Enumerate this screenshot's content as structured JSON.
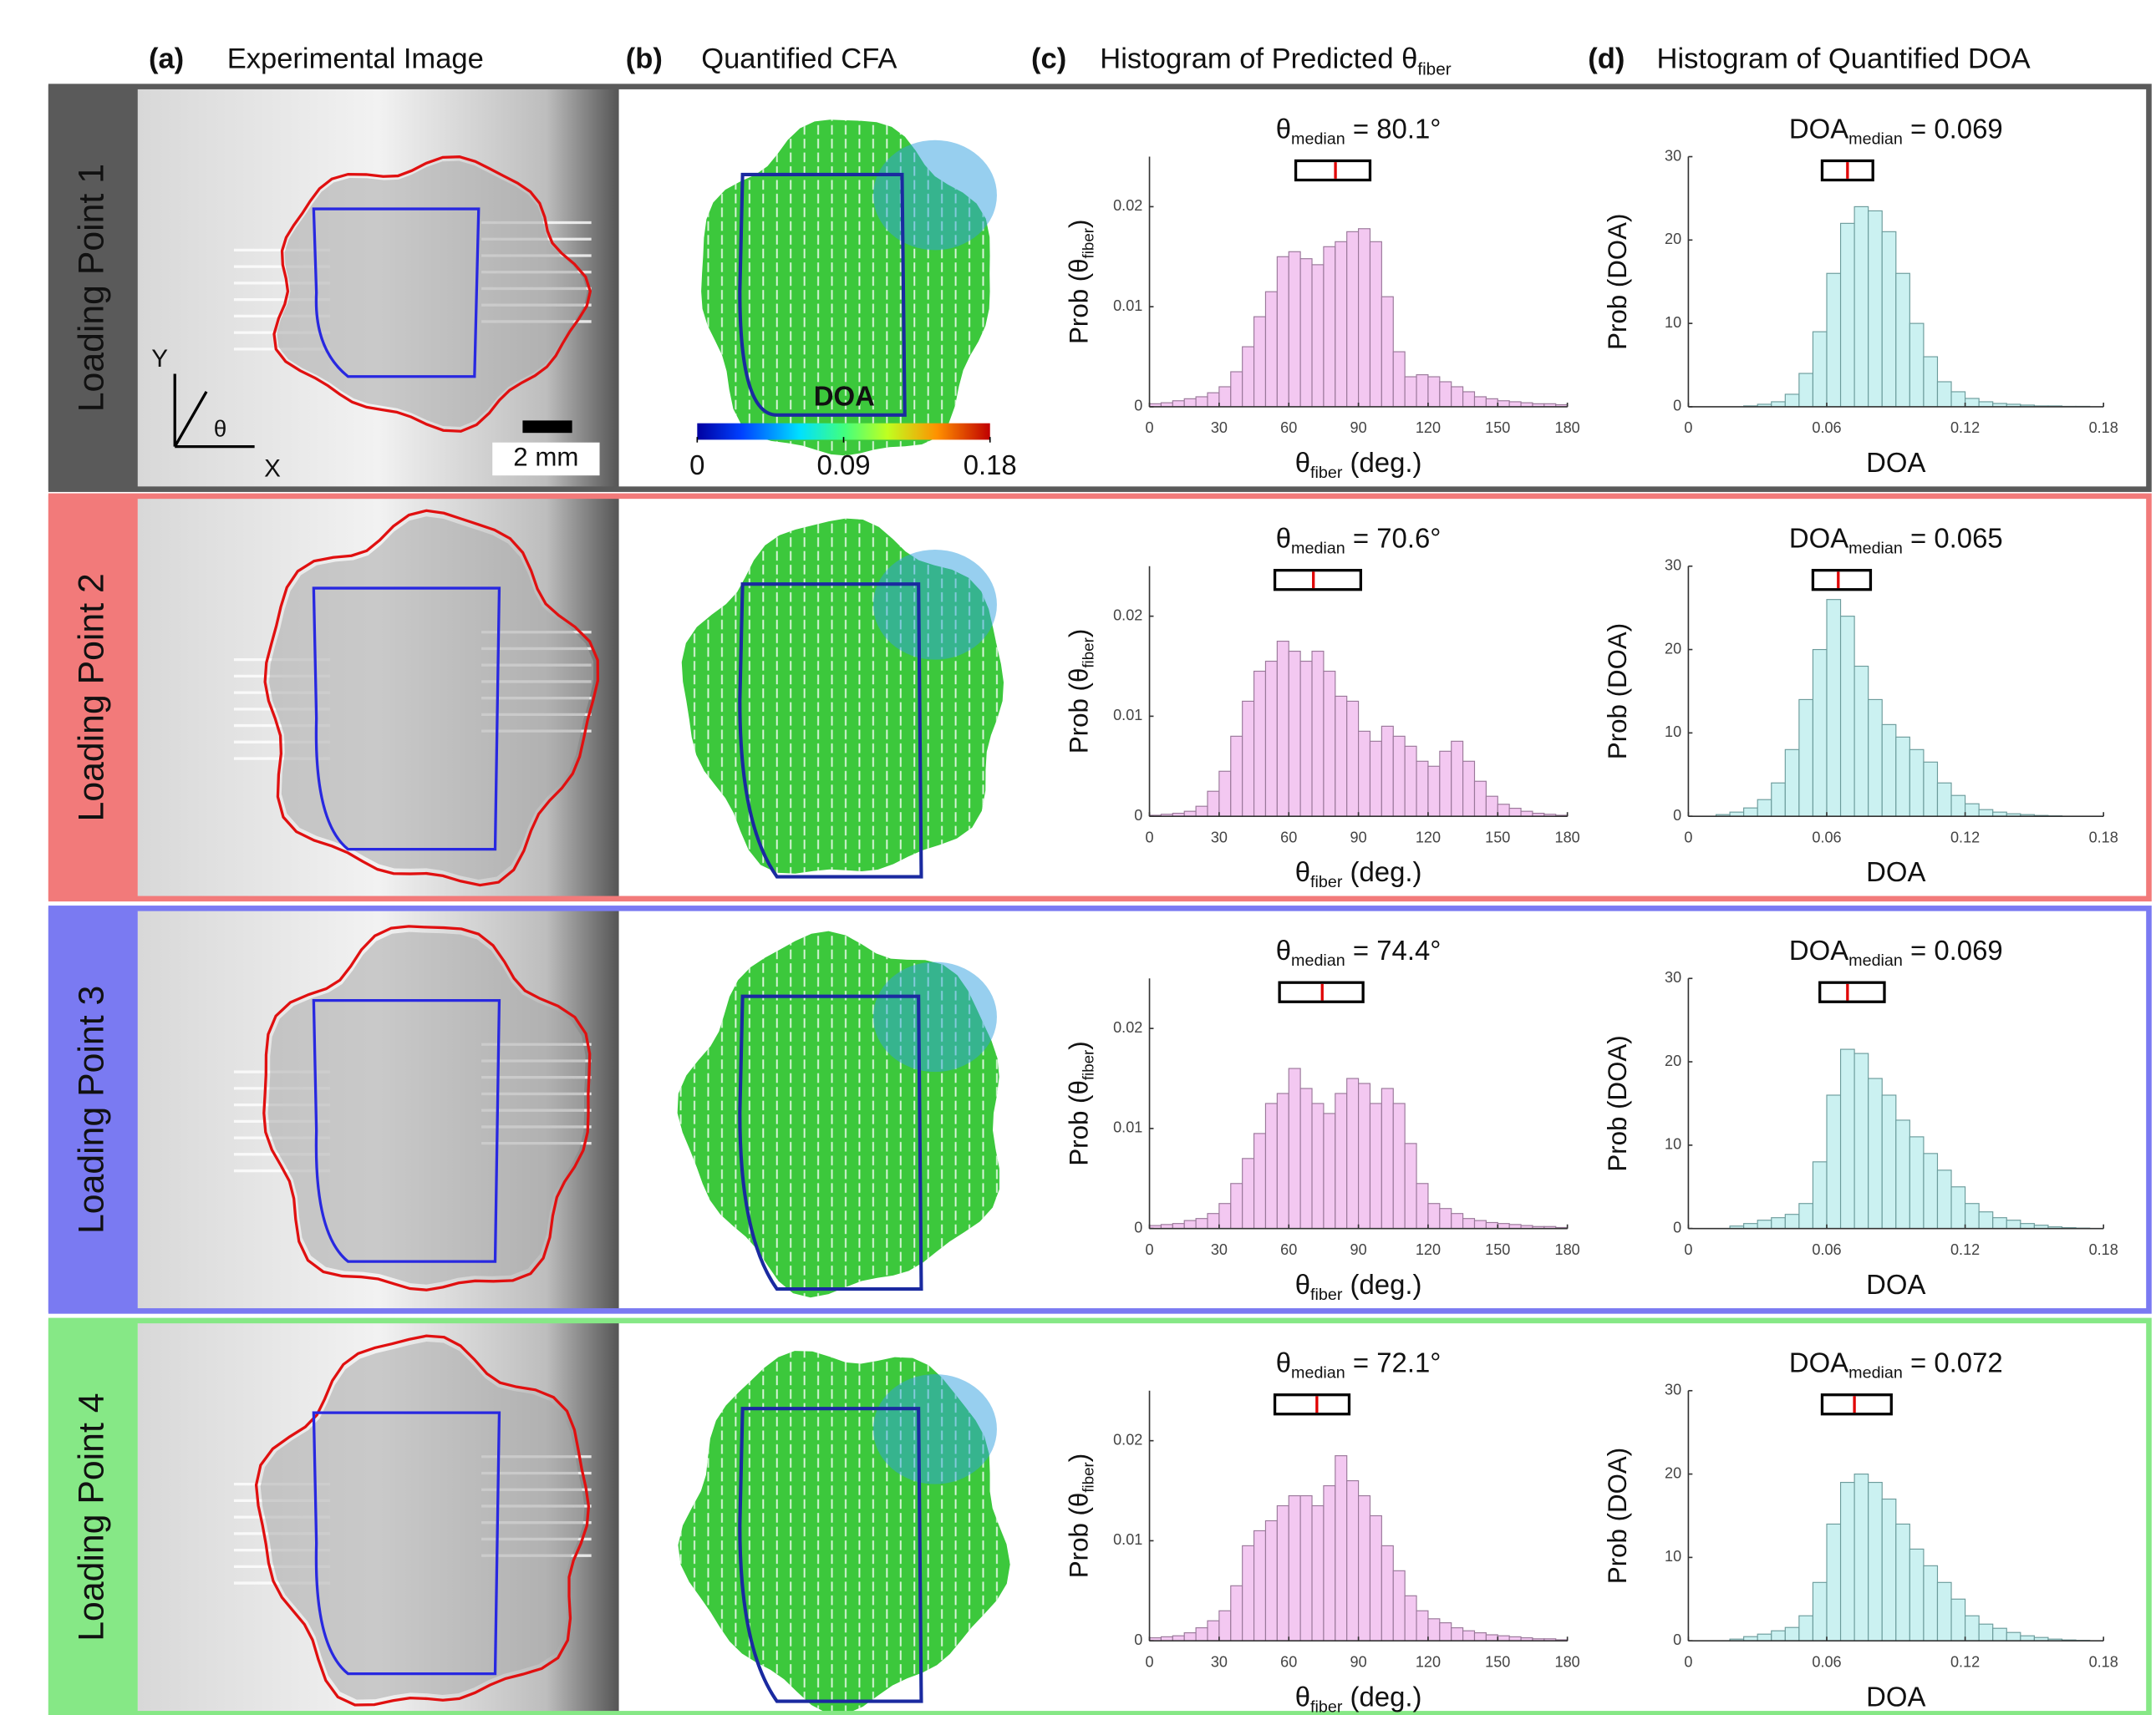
{
  "headers": [
    {
      "letter": "(a)",
      "text": "Experimental Image"
    },
    {
      "letter": "(b)",
      "text": "Quantified CFA"
    },
    {
      "letter": "(c)",
      "text": "Histogram of Predicted θ",
      "sub": "fiber"
    },
    {
      "letter": "(d)",
      "text": "Histogram of Quantified DOA"
    }
  ],
  "rows": [
    {
      "label": "Loading Point 1",
      "color": "#5a5a5a"
    },
    {
      "label": "Loading Point 2",
      "color": "#f27a7a"
    },
    {
      "label": "Loading Point 3",
      "color": "#7a7af2"
    },
    {
      "label": "Loading Point 4",
      "color": "#86e886"
    }
  ],
  "scale_bar": "2 mm",
  "axes_icon": {
    "x": "X",
    "y": "Y",
    "angle": "θ"
  },
  "colorbar": {
    "label": "DOA",
    "lim": [
      0,
      0.18
    ],
    "ticks": [
      0,
      0.09,
      0.18
    ]
  },
  "chart_data": [
    {
      "type": "histogram",
      "title": {
        "main": "θ",
        "sub": "median",
        "rest": " = 80.1°"
      },
      "xlabel": {
        "main": "θ",
        "sub": "fiber",
        "rest": " (deg.)"
      },
      "ylabel": {
        "main": "Prob (θ",
        "sub": "fiber",
        "rest": ")"
      },
      "color": "#f3c8f1",
      "edgecolor": "#9a789a",
      "bins": [
        0,
        5,
        10,
        15,
        20,
        25,
        30,
        35,
        40,
        45,
        50,
        55,
        60,
        65,
        70,
        75,
        80,
        85,
        90,
        95,
        100,
        105,
        110,
        115,
        120,
        125,
        130,
        135,
        140,
        145,
        150,
        155,
        160,
        165,
        170,
        175,
        180
      ],
      "values": [
        0.0003,
        0.0004,
        0.0006,
        0.0008,
        0.001,
        0.0014,
        0.002,
        0.0035,
        0.006,
        0.009,
        0.0115,
        0.015,
        0.0155,
        0.0148,
        0.0142,
        0.016,
        0.0165,
        0.0175,
        0.0178,
        0.0165,
        0.011,
        0.0055,
        0.003,
        0.0032,
        0.003,
        0.0025,
        0.002,
        0.0015,
        0.001,
        0.0008,
        0.0006,
        0.0005,
        0.0004,
        0.0003,
        0.0003,
        0.0002
      ],
      "xlim": [
        0,
        180
      ],
      "xticks": [
        0,
        30,
        60,
        90,
        120,
        150,
        180
      ],
      "ylim": [
        0,
        0.025
      ],
      "yticks": [
        0,
        0.01,
        0.02
      ],
      "box": {
        "q1": 63,
        "median": 80.1,
        "q3": 95
      }
    },
    {
      "type": "histogram",
      "title": {
        "main": "DOA",
        "sub": "median",
        "rest": " = 0.069"
      },
      "xlabel": {
        "main": "DOA"
      },
      "ylabel": {
        "main": "Prob (DOA)"
      },
      "color": "#cbf1f1",
      "edgecolor": "#6c9c9c",
      "bins": [
        0,
        0.006,
        0.012,
        0.018,
        0.024,
        0.03,
        0.036,
        0.042,
        0.048,
        0.054,
        0.06,
        0.066,
        0.072,
        0.078,
        0.084,
        0.09,
        0.096,
        0.102,
        0.108,
        0.114,
        0.12,
        0.126,
        0.132,
        0.138,
        0.144,
        0.15,
        0.156,
        0.162,
        0.168,
        0.174,
        0.18
      ],
      "values": [
        0,
        0,
        0,
        0,
        0.1,
        0.3,
        0.6,
        1.5,
        4,
        9,
        16,
        22,
        24,
        23.5,
        21,
        16,
        10,
        6,
        3,
        1.8,
        1,
        0.6,
        0.4,
        0.3,
        0.2,
        0.1,
        0.1,
        0.05,
        0.05,
        0
      ],
      "xlim": [
        0,
        0.18
      ],
      "xticks": [
        0,
        0.06,
        0.12,
        0.18
      ],
      "ylim": [
        0,
        30
      ],
      "yticks": [
        0,
        10,
        20,
        30
      ],
      "box": {
        "q1": 0.058,
        "median": 0.069,
        "q3": 0.08
      }
    },
    {
      "type": "histogram",
      "title": {
        "main": "θ",
        "sub": "median",
        "rest": " = 70.6°"
      },
      "xlabel": {
        "main": "θ",
        "sub": "fiber",
        "rest": " (deg.)"
      },
      "ylabel": {
        "main": "Prob (θ",
        "sub": "fiber",
        "rest": ")"
      },
      "color": "#f3c8f1",
      "edgecolor": "#9a789a",
      "bins": [
        0,
        5,
        10,
        15,
        20,
        25,
        30,
        35,
        40,
        45,
        50,
        55,
        60,
        65,
        70,
        75,
        80,
        85,
        90,
        95,
        100,
        105,
        110,
        115,
        120,
        125,
        130,
        135,
        140,
        145,
        150,
        155,
        160,
        165,
        170,
        175,
        180
      ],
      "values": [
        0.0001,
        0.0002,
        0.0003,
        0.0005,
        0.001,
        0.0025,
        0.0045,
        0.008,
        0.0115,
        0.0145,
        0.0155,
        0.0175,
        0.0165,
        0.0155,
        0.0165,
        0.0145,
        0.012,
        0.0115,
        0.0085,
        0.0075,
        0.009,
        0.008,
        0.007,
        0.0055,
        0.005,
        0.0065,
        0.0075,
        0.0055,
        0.0035,
        0.002,
        0.0012,
        0.0008,
        0.0005,
        0.0003,
        0.0002,
        0.0001
      ],
      "xlim": [
        0,
        180
      ],
      "xticks": [
        0,
        30,
        60,
        90,
        120,
        150,
        180
      ],
      "ylim": [
        0,
        0.025
      ],
      "yticks": [
        0,
        0.01,
        0.02
      ],
      "box": {
        "q1": 54,
        "median": 70.6,
        "q3": 91
      }
    },
    {
      "type": "histogram",
      "title": {
        "main": "DOA",
        "sub": "median",
        "rest": " = 0.065"
      },
      "xlabel": {
        "main": "DOA"
      },
      "ylabel": {
        "main": "Prob (DOA)"
      },
      "color": "#cbf1f1",
      "edgecolor": "#6c9c9c",
      "bins": [
        0,
        0.006,
        0.012,
        0.018,
        0.024,
        0.03,
        0.036,
        0.042,
        0.048,
        0.054,
        0.06,
        0.066,
        0.072,
        0.078,
        0.084,
        0.09,
        0.096,
        0.102,
        0.108,
        0.114,
        0.12,
        0.126,
        0.132,
        0.138,
        0.144,
        0.15,
        0.156,
        0.162,
        0.168,
        0.174,
        0.18
      ],
      "values": [
        0,
        0,
        0.2,
        0.5,
        1,
        2,
        4,
        8,
        14,
        20,
        26,
        24,
        18,
        14,
        11,
        9.5,
        8,
        6.5,
        4,
        2.5,
        1.5,
        0.8,
        0.5,
        0.3,
        0.2,
        0.1,
        0.05,
        0,
        0,
        0
      ],
      "xlim": [
        0,
        0.18
      ],
      "xticks": [
        0,
        0.06,
        0.12,
        0.18
      ],
      "ylim": [
        0,
        30
      ],
      "yticks": [
        0,
        10,
        20,
        30
      ],
      "box": {
        "q1": 0.054,
        "median": 0.065,
        "q3": 0.079
      }
    },
    {
      "type": "histogram",
      "title": {
        "main": "θ",
        "sub": "median",
        "rest": " = 74.4°"
      },
      "xlabel": {
        "main": "θ",
        "sub": "fiber",
        "rest": " (deg.)"
      },
      "ylabel": {
        "main": "Prob (θ",
        "sub": "fiber",
        "rest": ")"
      },
      "color": "#f3c8f1",
      "edgecolor": "#9a789a",
      "bins": [
        0,
        5,
        10,
        15,
        20,
        25,
        30,
        35,
        40,
        45,
        50,
        55,
        60,
        65,
        70,
        75,
        80,
        85,
        90,
        95,
        100,
        105,
        110,
        115,
        120,
        125,
        130,
        135,
        140,
        145,
        150,
        155,
        160,
        165,
        170,
        175,
        180
      ],
      "values": [
        0.0003,
        0.0004,
        0.0005,
        0.0008,
        0.001,
        0.0015,
        0.0025,
        0.0045,
        0.007,
        0.0095,
        0.0125,
        0.0135,
        0.016,
        0.014,
        0.0125,
        0.0115,
        0.0135,
        0.015,
        0.0145,
        0.0125,
        0.014,
        0.0125,
        0.0085,
        0.0045,
        0.0025,
        0.002,
        0.0015,
        0.001,
        0.0008,
        0.0006,
        0.0005,
        0.0004,
        0.0003,
        0.0002,
        0.0002,
        0.0001
      ],
      "xlim": [
        0,
        180
      ],
      "xticks": [
        0,
        30,
        60,
        90,
        120,
        150,
        180
      ],
      "ylim": [
        0,
        0.025
      ],
      "yticks": [
        0,
        0.01,
        0.02
      ],
      "box": {
        "q1": 56,
        "median": 74.4,
        "q3": 92
      }
    },
    {
      "type": "histogram",
      "title": {
        "main": "DOA",
        "sub": "median",
        "rest": " = 0.069"
      },
      "xlabel": {
        "main": "DOA"
      },
      "ylabel": {
        "main": "Prob (DOA)"
      },
      "color": "#cbf1f1",
      "edgecolor": "#6c9c9c",
      "bins": [
        0,
        0.006,
        0.012,
        0.018,
        0.024,
        0.03,
        0.036,
        0.042,
        0.048,
        0.054,
        0.06,
        0.066,
        0.072,
        0.078,
        0.084,
        0.09,
        0.096,
        0.102,
        0.108,
        0.114,
        0.12,
        0.126,
        0.132,
        0.138,
        0.144,
        0.15,
        0.156,
        0.162,
        0.168,
        0.174,
        0.18
      ],
      "values": [
        0,
        0,
        0,
        0.3,
        0.6,
        1,
        1.3,
        1.7,
        3,
        8,
        16,
        21.5,
        21,
        18,
        16,
        13,
        11,
        9,
        7,
        5,
        3,
        2,
        1.3,
        1,
        0.6,
        0.4,
        0.2,
        0.1,
        0.05,
        0
      ],
      "xlim": [
        0,
        0.18
      ],
      "xticks": [
        0,
        0.06,
        0.12,
        0.18
      ],
      "ylim": [
        0,
        30
      ],
      "yticks": [
        0,
        10,
        20,
        30
      ],
      "box": {
        "q1": 0.057,
        "median": 0.069,
        "q3": 0.085
      }
    },
    {
      "type": "histogram",
      "title": {
        "main": "θ",
        "sub": "median",
        "rest": " = 72.1°"
      },
      "xlabel": {
        "main": "θ",
        "sub": "fiber",
        "rest": " (deg.)"
      },
      "ylabel": {
        "main": "Prob (θ",
        "sub": "fiber",
        "rest": ")"
      },
      "color": "#f3c8f1",
      "edgecolor": "#9a789a",
      "bins": [
        0,
        5,
        10,
        15,
        20,
        25,
        30,
        35,
        40,
        45,
        50,
        55,
        60,
        65,
        70,
        75,
        80,
        85,
        90,
        95,
        100,
        105,
        110,
        115,
        120,
        125,
        130,
        135,
        140,
        145,
        150,
        155,
        160,
        165,
        170,
        175,
        180
      ],
      "values": [
        0.0003,
        0.0004,
        0.0005,
        0.0008,
        0.0013,
        0.002,
        0.003,
        0.0055,
        0.0095,
        0.011,
        0.012,
        0.0135,
        0.0145,
        0.0145,
        0.0135,
        0.0155,
        0.0185,
        0.016,
        0.0145,
        0.0125,
        0.0095,
        0.007,
        0.0045,
        0.003,
        0.0022,
        0.0018,
        0.0013,
        0.001,
        0.0008,
        0.0006,
        0.0005,
        0.0004,
        0.0003,
        0.0002,
        0.0002,
        0.0001
      ],
      "xlim": [
        0,
        180
      ],
      "xticks": [
        0,
        30,
        60,
        90,
        120,
        150,
        180
      ],
      "ylim": [
        0,
        0.025
      ],
      "yticks": [
        0,
        0.01,
        0.02
      ],
      "box": {
        "q1": 54,
        "median": 72.1,
        "q3": 86
      }
    },
    {
      "type": "histogram",
      "title": {
        "main": "DOA",
        "sub": "median",
        "rest": " = 0.072"
      },
      "xlabel": {
        "main": "DOA"
      },
      "ylabel": {
        "main": "Prob (DOA)"
      },
      "color": "#cbf1f1",
      "edgecolor": "#6c9c9c",
      "bins": [
        0,
        0.006,
        0.012,
        0.018,
        0.024,
        0.03,
        0.036,
        0.042,
        0.048,
        0.054,
        0.06,
        0.066,
        0.072,
        0.078,
        0.084,
        0.09,
        0.096,
        0.102,
        0.108,
        0.114,
        0.12,
        0.126,
        0.132,
        0.138,
        0.144,
        0.15,
        0.156,
        0.162,
        0.168,
        0.174,
        0.18
      ],
      "values": [
        0,
        0,
        0,
        0.2,
        0.5,
        0.8,
        1.2,
        1.6,
        3,
        7,
        14,
        19,
        20,
        19,
        17,
        14,
        11,
        9,
        7,
        5,
        3,
        2,
        1.5,
        1,
        0.6,
        0.4,
        0.2,
        0.1,
        0.05,
        0
      ],
      "xlim": [
        0,
        0.18
      ],
      "xticks": [
        0,
        0.06,
        0.12,
        0.18
      ],
      "ylim": [
        0,
        30
      ],
      "yticks": [
        0,
        10,
        20,
        30
      ],
      "box": {
        "q1": 0.058,
        "median": 0.072,
        "q3": 0.088
      }
    }
  ]
}
